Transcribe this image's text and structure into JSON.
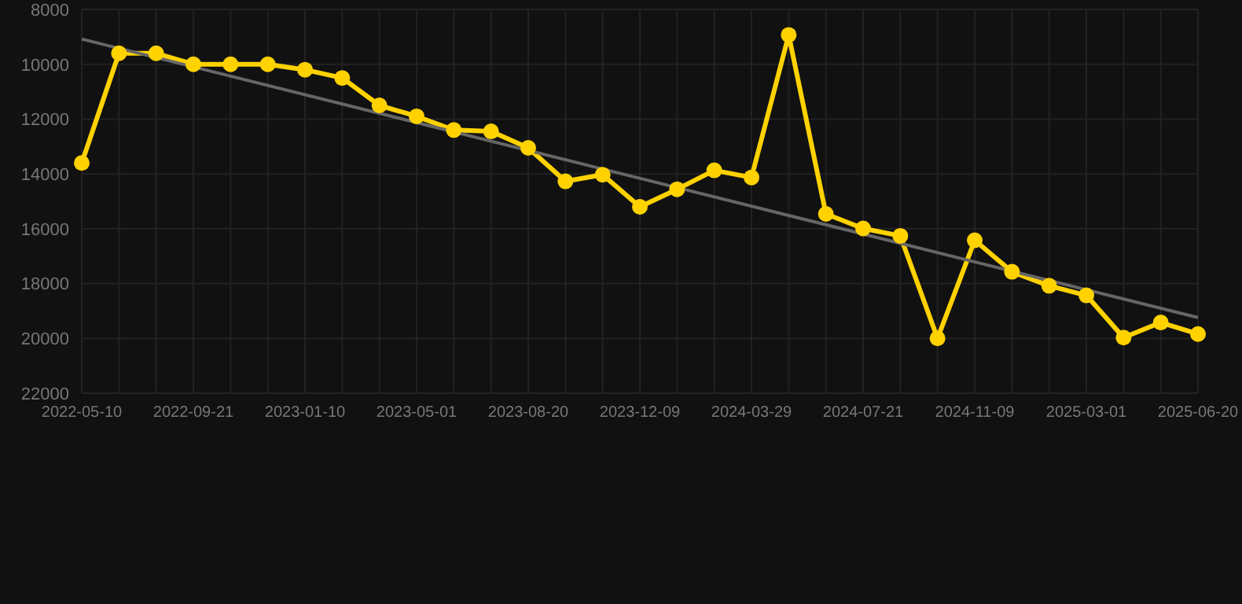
{
  "chart_data": {
    "type": "line",
    "categories": [
      "2022-05-10",
      null,
      null,
      "2022-09-21",
      null,
      null,
      "2023-01-10",
      null,
      null,
      "2023-05-01",
      null,
      null,
      "2023-08-20",
      null,
      null,
      "2023-12-09",
      null,
      null,
      "2024-03-29",
      null,
      null,
      "2024-07-21",
      null,
      null,
      "2024-11-09",
      null,
      null,
      "2025-03-01",
      null,
      null,
      "2025-06-20"
    ],
    "series": [
      {
        "color": "#ffd200",
        "marker": "circle",
        "values": [
          13600,
          9600,
          9600,
          10000,
          10000,
          10000,
          10200,
          10500,
          11500,
          11900,
          12400,
          12450,
          13050,
          14270,
          14030,
          15200,
          14560,
          13870,
          14130,
          8930,
          15460,
          15990,
          16260,
          20000,
          16420,
          17570,
          18080,
          18430,
          19970,
          19420,
          19840
        ]
      },
      {
        "color": "#666666",
        "marker": "none",
        "values": [
          9080,
          null,
          null,
          null,
          null,
          null,
          null,
          null,
          null,
          null,
          null,
          null,
          null,
          null,
          null,
          null,
          null,
          null,
          null,
          null,
          null,
          null,
          null,
          null,
          null,
          null,
          null,
          null,
          null,
          null,
          19240
        ]
      }
    ],
    "ylim": [
      22000,
      8000
    ],
    "yticks": [
      8000,
      10000,
      12000,
      14000,
      16000,
      18000,
      20000,
      22000
    ],
    "grid": true,
    "line_style": "solid"
  }
}
